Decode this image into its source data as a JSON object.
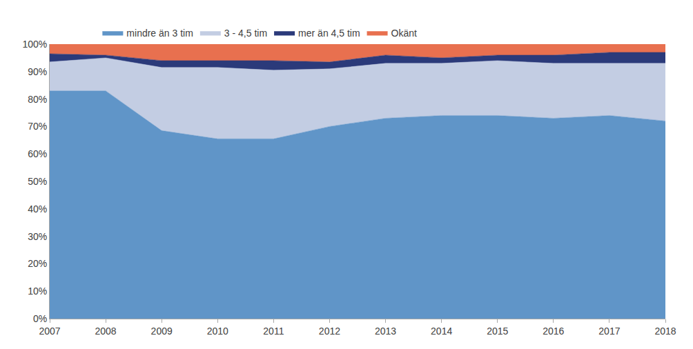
{
  "chart_data": {
    "type": "area",
    "stacked": true,
    "x": [
      2007,
      2008,
      2009,
      2010,
      2011,
      2012,
      2013,
      2014,
      2015,
      2016,
      2017,
      2018
    ],
    "series": [
      {
        "name": "mindre än 3 tim",
        "color": "#6095c8",
        "values": [
          83,
          83,
          68.5,
          65.5,
          65.5,
          70,
          73,
          74,
          74,
          73,
          74,
          72
        ]
      },
      {
        "name": "3 - 4,5 tim",
        "color": "#c3cde3",
        "values": [
          10.5,
          12,
          23,
          26,
          25,
          21,
          20,
          19,
          20,
          20,
          19,
          21
        ]
      },
      {
        "name": "mer än 4,5 tim",
        "color": "#2b3a7a",
        "values": [
          3,
          1,
          2.5,
          2.5,
          3.5,
          2.5,
          3,
          2,
          2,
          3,
          4,
          4
        ]
      },
      {
        "name": "Okänt",
        "color": "#e8704f",
        "values": [
          3.5,
          4,
          6,
          6,
          6,
          6.5,
          4,
          5,
          4,
          4,
          3,
          3
        ]
      }
    ],
    "xlim": [
      2007,
      2018
    ],
    "xticks": [
      2007,
      2008,
      2009,
      2010,
      2011,
      2012,
      2013,
      2014,
      2015,
      2016,
      2017,
      2018
    ],
    "ylim": [
      0,
      100
    ],
    "yticks": [
      {
        "value": 0,
        "label": "0%"
      },
      {
        "value": 10,
        "label": "10%"
      },
      {
        "value": 20,
        "label": "20%"
      },
      {
        "value": 30,
        "label": "30%"
      },
      {
        "value": 40,
        "label": "40%"
      },
      {
        "value": 50,
        "label": "50%"
      },
      {
        "value": 60,
        "label": "60%"
      },
      {
        "value": 70,
        "label": "70%"
      },
      {
        "value": 80,
        "label": "80%"
      },
      {
        "value": 90,
        "label": "90%"
      },
      {
        "value": 100,
        "label": "100%"
      }
    ],
    "grid": true,
    "legend": "top"
  }
}
